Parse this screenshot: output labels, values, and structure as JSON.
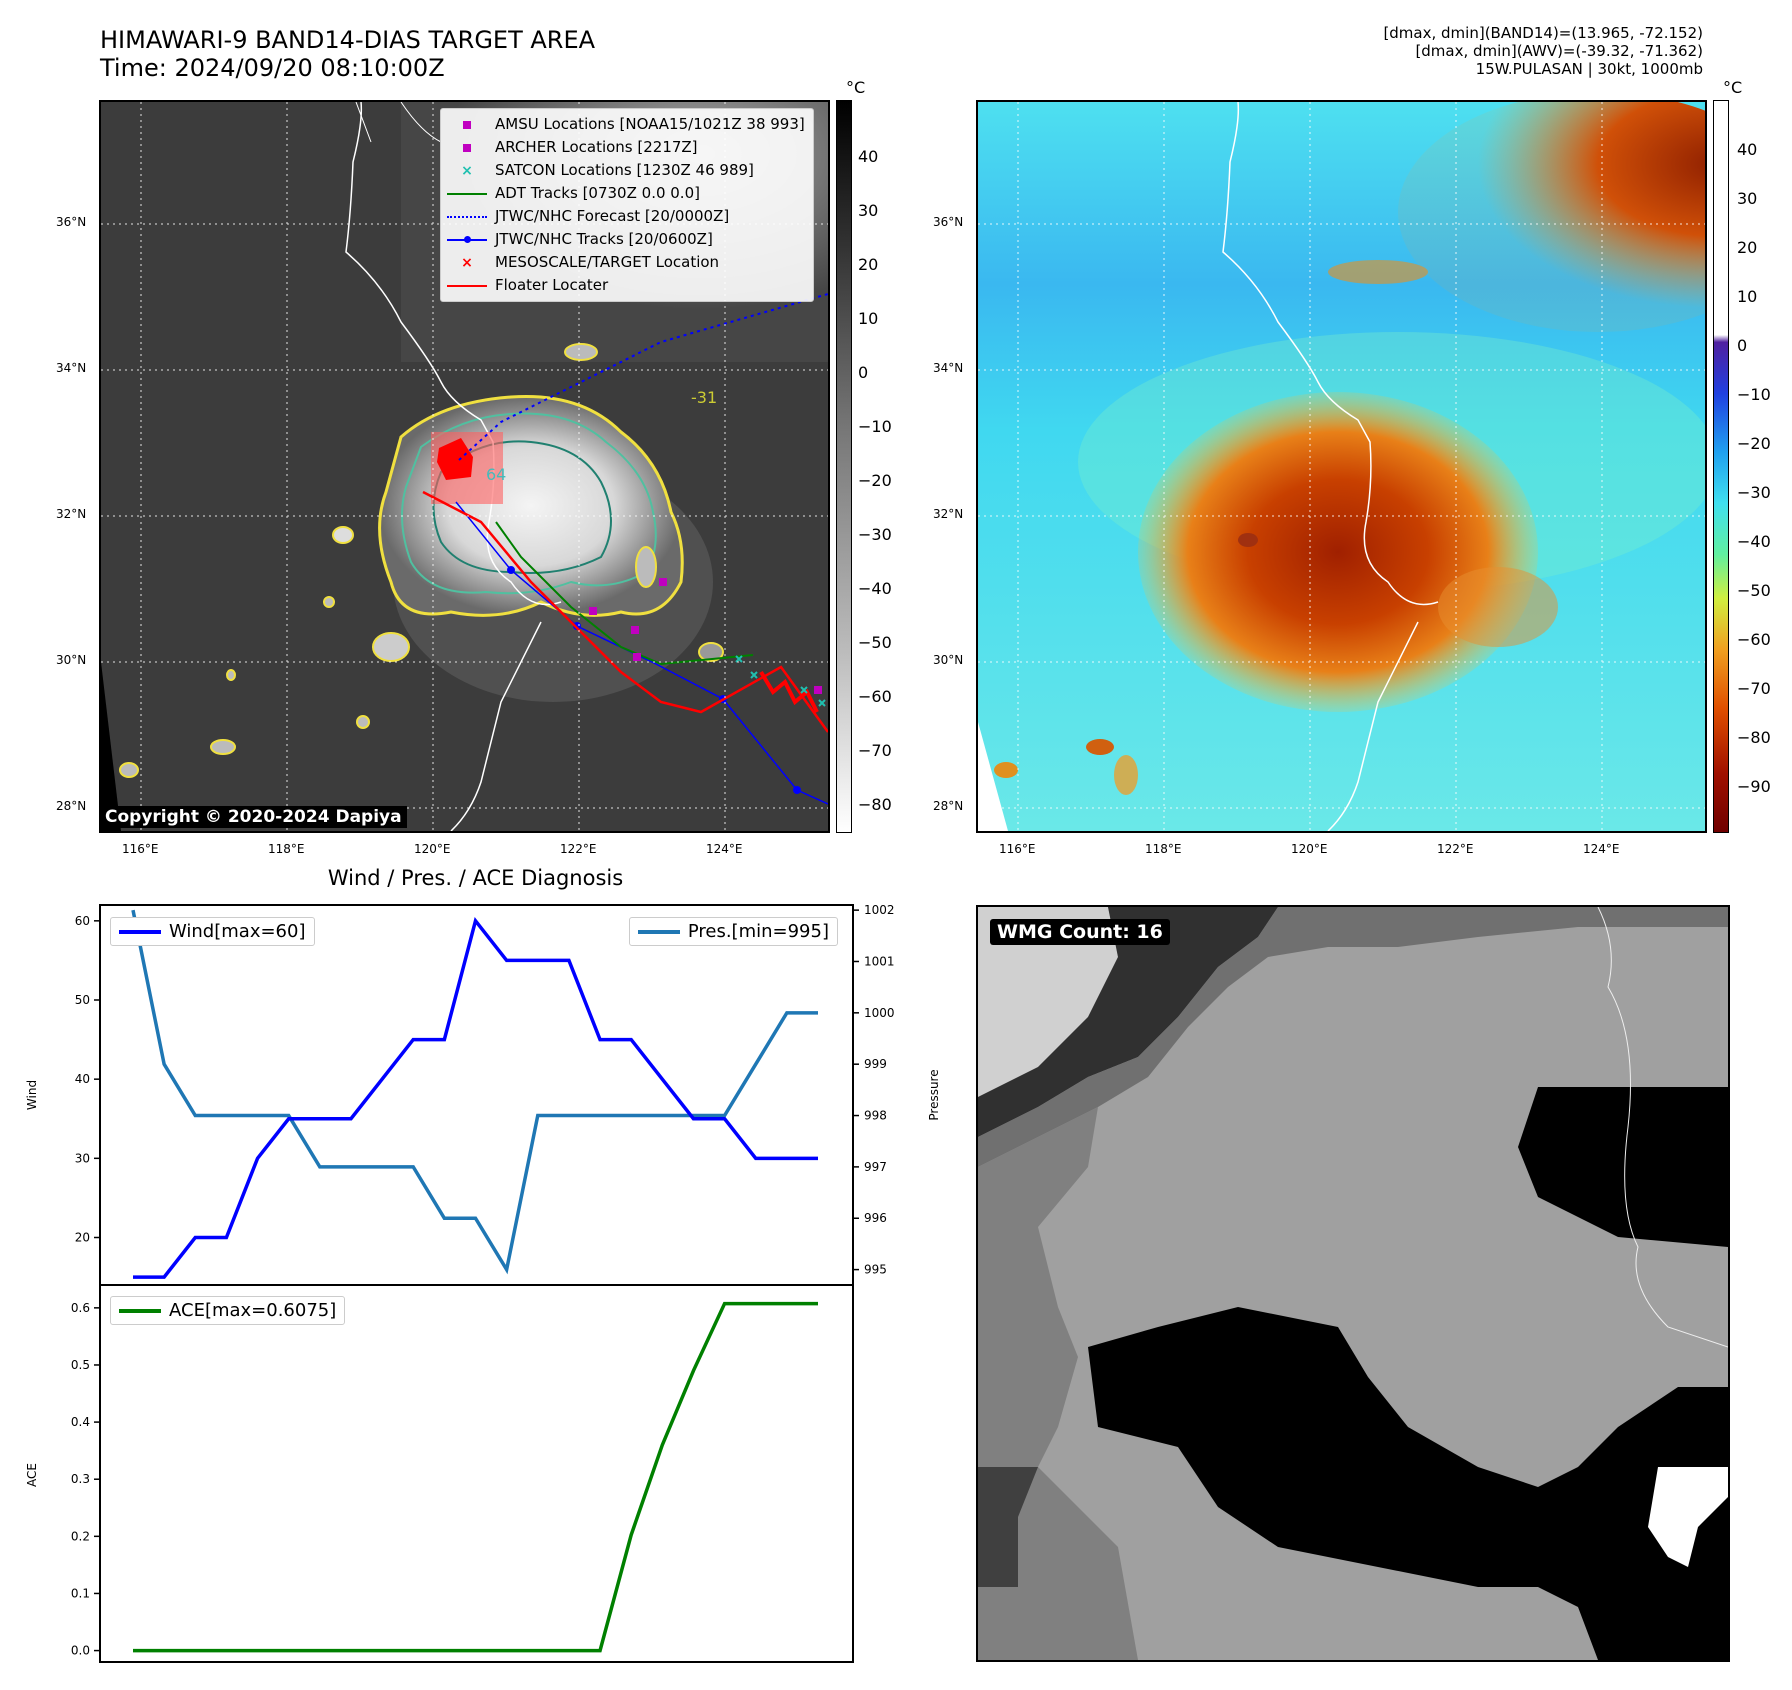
{
  "header": {
    "title_line1": "HIMAWARI-9 BAND14-DIAS TARGET AREA",
    "title_line2": "Time: 2024/09/20 08:10:00Z",
    "meta_line1": "[dmax, dmin](BAND14)=(13.965, -72.152)",
    "meta_line2": "[dmax, dmin](AWV)=(-39.32, -71.362)",
    "meta_line3": "15W.PULASAN | 30kt, 1000mb"
  },
  "map_axes": {
    "lat_labels": [
      "36°N",
      "34°N",
      "32°N",
      "30°N",
      "28°N"
    ],
    "lon_labels": [
      "116°E",
      "118°E",
      "120°E",
      "122°E",
      "124°E"
    ]
  },
  "ir_panel": {
    "copyright": "Copyright © 2020-2024 Dapiya",
    "colorbar_unit": "°C",
    "colorbar_ticks": [
      "40",
      "30",
      "20",
      "10",
      "0",
      "−10",
      "−20",
      "−30",
      "−40",
      "−50",
      "−60",
      "−70",
      "−80"
    ],
    "contour_labels": [
      "-31",
      "64"
    ],
    "legend": [
      {
        "label": "AMSU Locations [NOAA15/1021Z 38 993]",
        "symbol": "square",
        "color": "#c000c0"
      },
      {
        "label": "ARCHER Locations [2217Z]",
        "symbol": "square",
        "color": "#c000c0"
      },
      {
        "label": "SATCON Locations [1230Z 46 989]",
        "symbol": "x",
        "color": "#20c0b0"
      },
      {
        "label": "ADT Tracks [0730Z 0.0 0.0]",
        "symbol": "line",
        "color": "#008000"
      },
      {
        "label": "JTWC/NHC Forecast [20/0000Z]",
        "symbol": "dotted",
        "color": "#0000ff"
      },
      {
        "label": "JTWC/NHC Tracks [20/0600Z]",
        "symbol": "line-dot",
        "color": "#0000ff"
      },
      {
        "label": "MESOSCALE/TARGET Location",
        "symbol": "x",
        "color": "#ff0000"
      },
      {
        "label": "Floater Locater",
        "symbol": "line",
        "color": "#ff0000"
      }
    ]
  },
  "awv_panel": {
    "colorbar_unit": "°C",
    "colorbar_ticks": [
      "40",
      "30",
      "20",
      "10",
      "0",
      "−10",
      "−20",
      "−30",
      "−40",
      "−50",
      "−60",
      "−70",
      "−80",
      "−90"
    ]
  },
  "wmg_panel": {
    "label": "WMG Count: 16"
  },
  "chart_data": [
    {
      "type": "line",
      "title": "Wind / Pres. / ACE Diagnosis",
      "ylabel": "Wind",
      "y2label": "Pressure",
      "ylim": [
        14,
        62
      ],
      "y2lim": [
        994.7,
        1002.1
      ],
      "yticks": [
        20,
        30,
        40,
        50,
        60
      ],
      "y2ticks": [
        995,
        996,
        997,
        998,
        999,
        1000,
        1001,
        1002
      ],
      "x": [
        0,
        1,
        2,
        3,
        4,
        5,
        6,
        7,
        8,
        9,
        10,
        11,
        12,
        13,
        14,
        15,
        16,
        17,
        18,
        19,
        20,
        21,
        22
      ],
      "series": [
        {
          "name": "Wind[max=60]",
          "axis": "left",
          "color": "#0000ff",
          "values": [
            15,
            15,
            20,
            20,
            30,
            35,
            35,
            35,
            40,
            45,
            45,
            60,
            55,
            55,
            55,
            45,
            45,
            40,
            35,
            35,
            30,
            30,
            30
          ]
        },
        {
          "name": "Pres.[min=995]",
          "axis": "right",
          "color": "#1f77b4",
          "values": [
            1002,
            999,
            998,
            998,
            998,
            998,
            997,
            997,
            997,
            997,
            996,
            996,
            995,
            998,
            998,
            998,
            998,
            998,
            998,
            998,
            999,
            1000,
            1000
          ]
        }
      ]
    },
    {
      "type": "line",
      "ylabel": "ACE",
      "ylim": [
        -0.02,
        0.64
      ],
      "yticks": [
        "0.0",
        "0.1",
        "0.2",
        "0.3",
        "0.4",
        "0.5",
        "0.6"
      ],
      "x": [
        0,
        1,
        2,
        3,
        4,
        5,
        6,
        7,
        8,
        9,
        10,
        11,
        12,
        13,
        14,
        15,
        16,
        17,
        18,
        19,
        20,
        21,
        22
      ],
      "series": [
        {
          "name": "ACE[max=0.6075]",
          "color": "#008000",
          "values": [
            0,
            0,
            0,
            0,
            0,
            0,
            0,
            0,
            0,
            0,
            0,
            0,
            0,
            0,
            0,
            0,
            0.2025,
            0.36,
            0.49,
            0.6075,
            0.6075,
            0.6075,
            0.6075
          ]
        }
      ]
    }
  ]
}
